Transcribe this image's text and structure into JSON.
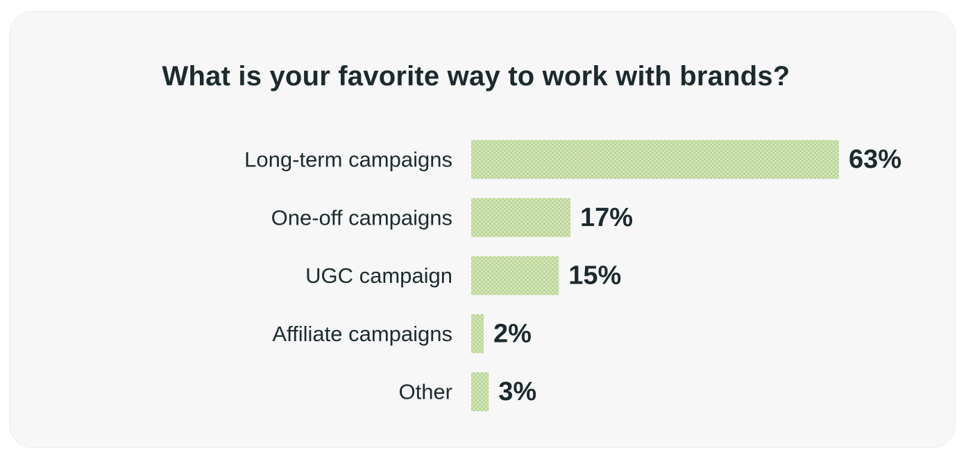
{
  "chart_data": {
    "type": "bar",
    "orientation": "horizontal",
    "title": "What is your favorite way to work with brands?",
    "categories": [
      "Long-term campaigns",
      "One-off campaigns",
      "UGC campaign",
      "Affiliate campaigns",
      "Other"
    ],
    "values": [
      63,
      17,
      15,
      2,
      3
    ],
    "value_labels": [
      "63%",
      "17%",
      "15%",
      "2%",
      "3%"
    ],
    "unit": "%",
    "xlim": [
      0,
      63
    ],
    "grid": false,
    "legend": "none",
    "bar_color": "#d6e6b5",
    "bar_pattern_color": "#b8d49a"
  }
}
